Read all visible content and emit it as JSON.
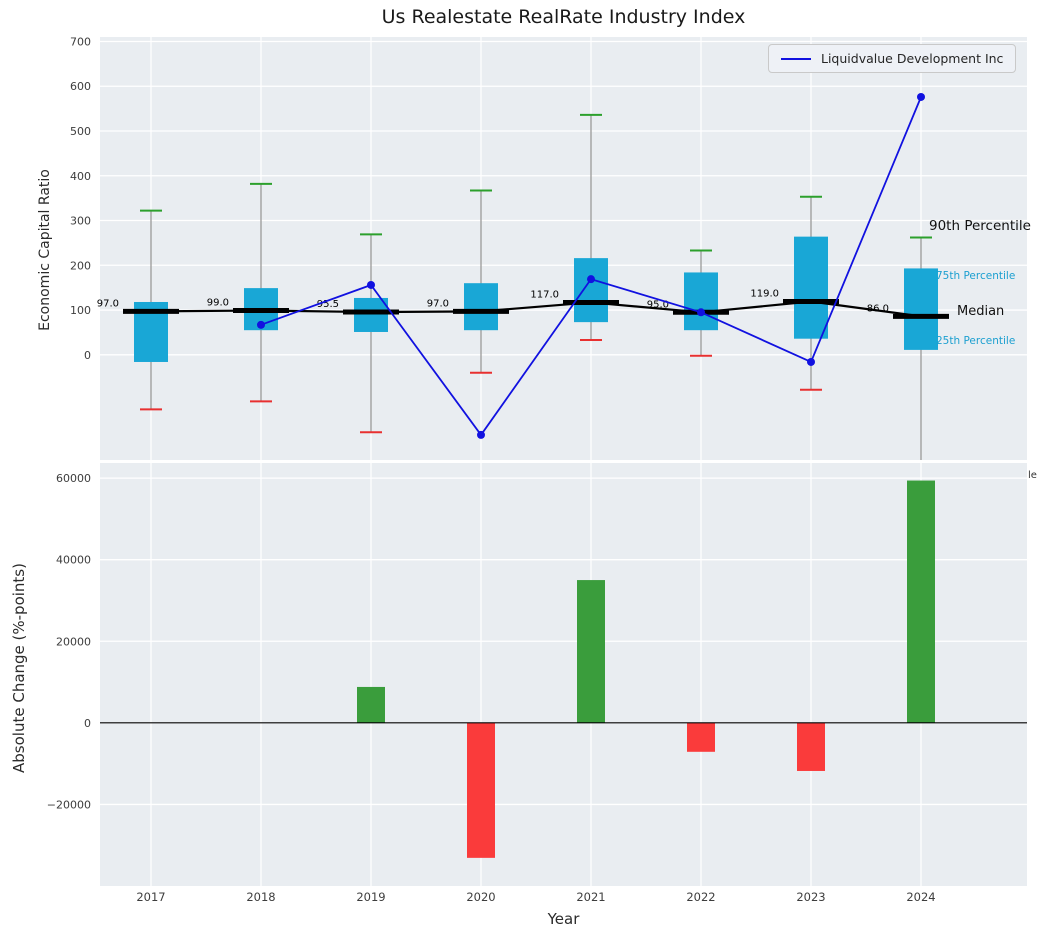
{
  "figure": {
    "title": "Us Realestate RealRate Industry Index",
    "background": "#ffffff",
    "axes_background": "#e9edf1",
    "grid_color": "#ffffff"
  },
  "legend": {
    "label": "Liquidvalue Development Inc"
  },
  "annotations": {
    "p90": "90th Percentile",
    "p75": "75th Percentile",
    "median": "Median",
    "p25": "25th Percentile",
    "clipped": "le"
  },
  "chart_data": [
    {
      "type": "boxplot+line",
      "title": "Us Realestate RealRate Industry Index",
      "xlabel": "",
      "ylabel": "Economic Capital Ratio",
      "categories": [
        "2017",
        "2018",
        "2019",
        "2020",
        "2021",
        "2022",
        "2023",
        "2024"
      ],
      "ylim": [
        -235,
        710
      ],
      "yticks": [
        0,
        100,
        200,
        300,
        400,
        500,
        600,
        700
      ],
      "ytick_labels": [
        "0",
        "100",
        "200",
        "300",
        "400",
        "500",
        "600",
        "700"
      ],
      "grid": true,
      "legend_position": "upper right",
      "boxes": [
        {
          "year": "2017",
          "median": 97.0,
          "median_label": "97.0",
          "q1": -16,
          "q3": 118,
          "whisker_high": 322,
          "whisker_low": -122
        },
        {
          "year": "2018",
          "median": 99.0,
          "median_label": "99.0",
          "q1": 55,
          "q3": 149,
          "whisker_high": 382,
          "whisker_low": -104
        },
        {
          "year": "2019",
          "median": 95.5,
          "median_label": "95.5",
          "q1": 51,
          "q3": 127,
          "whisker_high": 269,
          "whisker_low": -173
        },
        {
          "year": "2020",
          "median": 97.0,
          "median_label": "97.0",
          "q1": 55,
          "q3": 160,
          "whisker_high": 367,
          "whisker_low": -40
        },
        {
          "year": "2021",
          "median": 117.0,
          "median_label": "117.0",
          "q1": 73,
          "q3": 216,
          "whisker_high": 536,
          "whisker_low": 33
        },
        {
          "year": "2022",
          "median": 95.0,
          "median_label": "95.0",
          "q1": 55,
          "q3": 184,
          "whisker_high": 233,
          "whisker_low": -2
        },
        {
          "year": "2023",
          "median": 119.0,
          "median_label": "119.0",
          "q1": 36,
          "q3": 264,
          "whisker_high": 353,
          "whisker_low": -78
        },
        {
          "year": "2024",
          "median": 86.0,
          "median_label": "86.0",
          "q1": 11,
          "q3": 193,
          "whisker_high": 262,
          "whisker_low": -520
        }
      ],
      "series": [
        {
          "name": "Liquidvalue Development Inc",
          "x": [
            "2018",
            "2019",
            "2020",
            "2021",
            "2022",
            "2023",
            "2024"
          ],
          "values": [
            67,
            156,
            -179,
            169,
            95,
            -16,
            576
          ]
        }
      ],
      "colors": {
        "box": "#19a7d6",
        "whisker": "#999999",
        "cap_high": "#2ca02c",
        "cap_low": "#e83030",
        "median": "#000000",
        "line": "#1111e0"
      }
    },
    {
      "type": "bar",
      "xlabel": "Year",
      "ylabel": "Absolute Change (%-points)",
      "categories": [
        "2017",
        "2018",
        "2019",
        "2020",
        "2021",
        "2022",
        "2023",
        "2024"
      ],
      "values": [
        0,
        0,
        8800,
        -33100,
        35000,
        -7100,
        -11800,
        59400
      ],
      "ylim": [
        -40000,
        63700
      ],
      "yticks": [
        -20000,
        0,
        20000,
        40000,
        60000
      ],
      "ytick_labels": [
        "−20000",
        "0",
        "20000",
        "40000",
        "60000"
      ],
      "grid": true,
      "colors": {
        "positive": "#3a9d3c",
        "negative": "#fa3b3b",
        "zero_line": "#000000"
      }
    }
  ]
}
